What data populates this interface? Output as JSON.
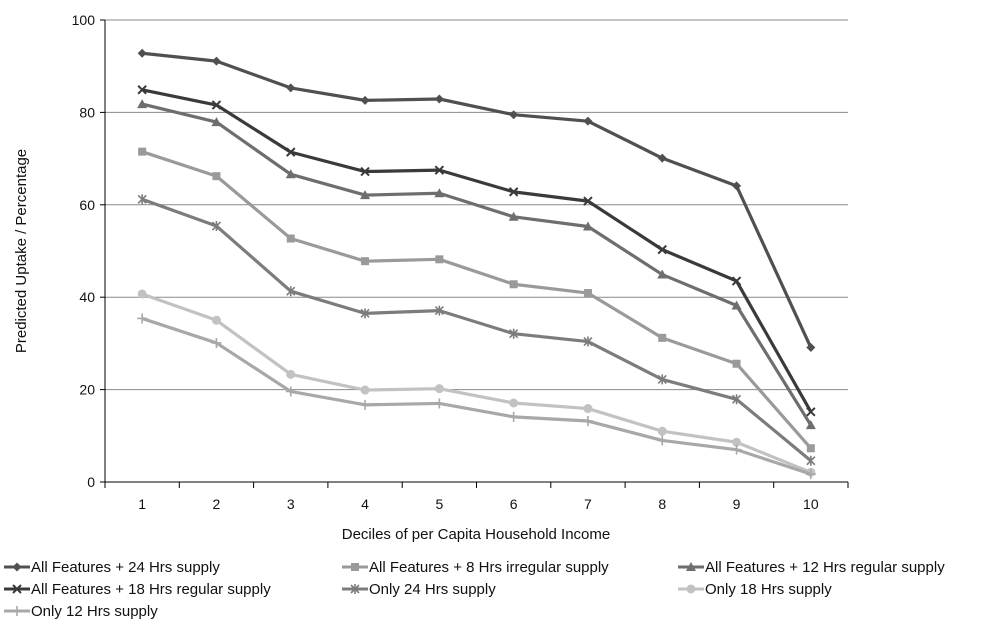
{
  "chart_data": {
    "type": "line",
    "title": "",
    "xlabel": "Deciles of per Capita Household Income",
    "ylabel": "Predicted Uptake / Percentage",
    "x": [
      "1",
      "2",
      "3",
      "4",
      "5",
      "6",
      "7",
      "8",
      "9",
      "10"
    ],
    "ylim": [
      0,
      100
    ],
    "yticks": [
      "0",
      "20",
      "40",
      "60",
      "80",
      "100"
    ],
    "grid": "horizontal",
    "legend_position": "bottom",
    "series": [
      {
        "name": "All Features + 24 Hrs supply",
        "color": "#505050",
        "marker": "diamond",
        "values": [
          92.8,
          91.1,
          85.3,
          82.6,
          82.9,
          79.5,
          78.1,
          70.1,
          64.1,
          29.1
        ]
      },
      {
        "name": "All Features + 8 Hrs irregular supply",
        "color": "#9a9a9a",
        "marker": "square",
        "values": [
          71.5,
          66.2,
          52.7,
          47.8,
          48.2,
          42.8,
          40.9,
          31.2,
          25.6,
          7.3
        ]
      },
      {
        "name": "All Features + 12 Hrs regular supply",
        "color": "#6e6e6e",
        "marker": "triangle",
        "values": [
          81.8,
          77.9,
          66.6,
          62.1,
          62.5,
          57.4,
          55.3,
          44.9,
          38.2,
          12.3
        ]
      },
      {
        "name": "All Features + 18 Hrs regular supply",
        "color": "#3a3a3a",
        "marker": "x",
        "values": [
          84.9,
          81.6,
          71.4,
          67.2,
          67.5,
          62.8,
          60.8,
          50.3,
          43.5,
          15.2
        ]
      },
      {
        "name": "Only 24 Hrs supply",
        "color": "#7c7c7c",
        "marker": "star",
        "values": [
          61.2,
          55.4,
          41.3,
          36.5,
          37.1,
          32.1,
          30.4,
          22.2,
          17.9,
          4.6
        ]
      },
      {
        "name": "Only 18 Hrs supply",
        "color": "#c2c2c2",
        "marker": "circle",
        "values": [
          40.7,
          35.0,
          23.3,
          19.9,
          20.2,
          17.1,
          15.9,
          11.0,
          8.6,
          2.1
        ]
      },
      {
        "name": "Only 12 Hrs supply",
        "color": "#a8a8a8",
        "marker": "plus",
        "values": [
          35.4,
          30.1,
          19.6,
          16.7,
          17.0,
          14.1,
          13.2,
          9.0,
          7.0,
          1.7
        ]
      }
    ]
  }
}
